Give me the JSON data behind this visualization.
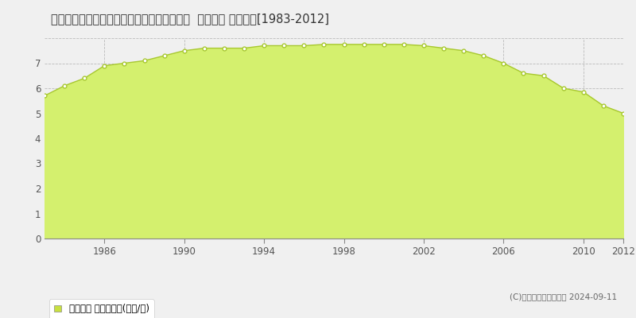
{
  "title": "長崎県松浦市志佐町庄野免字エテン３６番８  地価公示 地価推移[1983-2012]",
  "years": [
    1983,
    1984,
    1985,
    1986,
    1987,
    1988,
    1989,
    1990,
    1991,
    1992,
    1993,
    1994,
    1995,
    1996,
    1997,
    1998,
    1999,
    2000,
    2001,
    2002,
    2003,
    2004,
    2005,
    2006,
    2007,
    2008,
    2009,
    2010,
    2011,
    2012
  ],
  "values": [
    5.7,
    6.1,
    6.4,
    6.9,
    7.0,
    7.1,
    7.3,
    7.5,
    7.6,
    7.6,
    7.6,
    7.7,
    7.7,
    7.7,
    7.75,
    7.75,
    7.75,
    7.75,
    7.75,
    7.7,
    7.6,
    7.5,
    7.3,
    7.0,
    6.6,
    6.5,
    6.0,
    5.85,
    5.3,
    5.0
  ],
  "fill_color": "#d4f06e",
  "line_color": "#a8c830",
  "marker_facecolor": "#ffffff",
  "marker_edge_color": "#a8c830",
  "background_color": "#f0f0f0",
  "plot_bg_color": "#f0f0f0",
  "grid_color": "#bbbbbb",
  "ylim": [
    0,
    8
  ],
  "yticks": [
    0,
    1,
    2,
    3,
    4,
    5,
    6,
    7,
    8
  ],
  "xticks": [
    1986,
    1990,
    1994,
    1998,
    2002,
    2006,
    2010,
    2012
  ],
  "xmin": 1983,
  "xmax": 2012,
  "legend_label": "地価公示 平均坪単価(万円/坪)",
  "legend_marker_color": "#c8e040",
  "copyright_text": "(C)土地価格ドットコム 2024-09-11",
  "title_fontsize": 10.5,
  "tick_fontsize": 8.5,
  "legend_fontsize": 8.5,
  "copyright_fontsize": 7.5
}
